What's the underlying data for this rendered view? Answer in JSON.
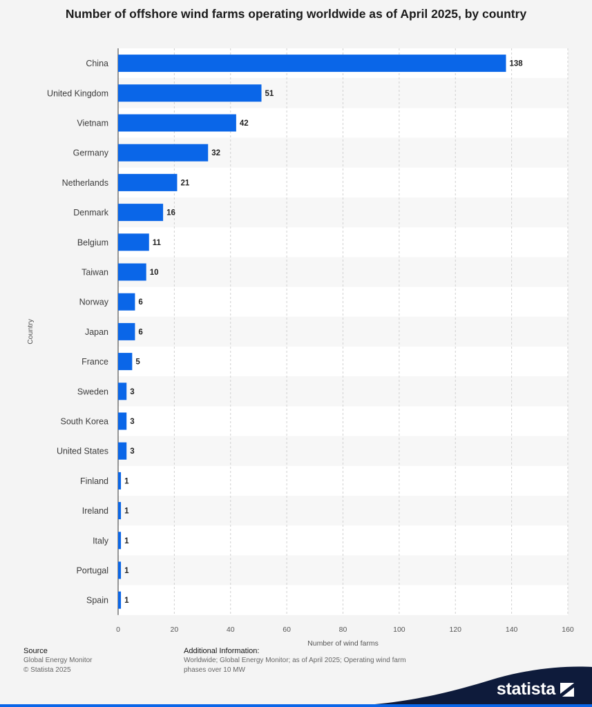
{
  "title": "Number of offshore wind farms operating worldwide as of April 2025, by country",
  "chart_data": {
    "type": "bar",
    "orientation": "horizontal",
    "categories": [
      "China",
      "United Kingdom",
      "Vietnam",
      "Germany",
      "Netherlands",
      "Denmark",
      "Belgium",
      "Taiwan",
      "Norway",
      "Japan",
      "France",
      "Sweden",
      "South Korea",
      "United States",
      "Finland",
      "Ireland",
      "Italy",
      "Portugal",
      "Spain"
    ],
    "values": [
      138,
      51,
      42,
      32,
      21,
      16,
      11,
      10,
      6,
      6,
      5,
      3,
      3,
      3,
      1,
      1,
      1,
      1,
      1
    ],
    "xlabel": "Number of wind farms",
    "ylabel": "Country",
    "xlim": [
      0,
      160
    ],
    "xticks": [
      0,
      20,
      40,
      60,
      80,
      100,
      120,
      140,
      160
    ],
    "grid": true,
    "data_labels": true,
    "bar_color": "#0a66e8"
  },
  "footer": {
    "source_heading": "Source",
    "source_line1": "Global Energy Monitor",
    "source_line2": "© Statista 2025",
    "info_heading": "Additional Information:",
    "info_line1": "Worldwide; Global Energy Monitor; as of April 2025; Operating wind farm",
    "info_line2": "phases over 10 MW"
  },
  "brand": {
    "name": "statista",
    "icon": "statista-logo-icon",
    "wave_color": "#0e1b3b",
    "accent_color": "#0a66e8"
  }
}
